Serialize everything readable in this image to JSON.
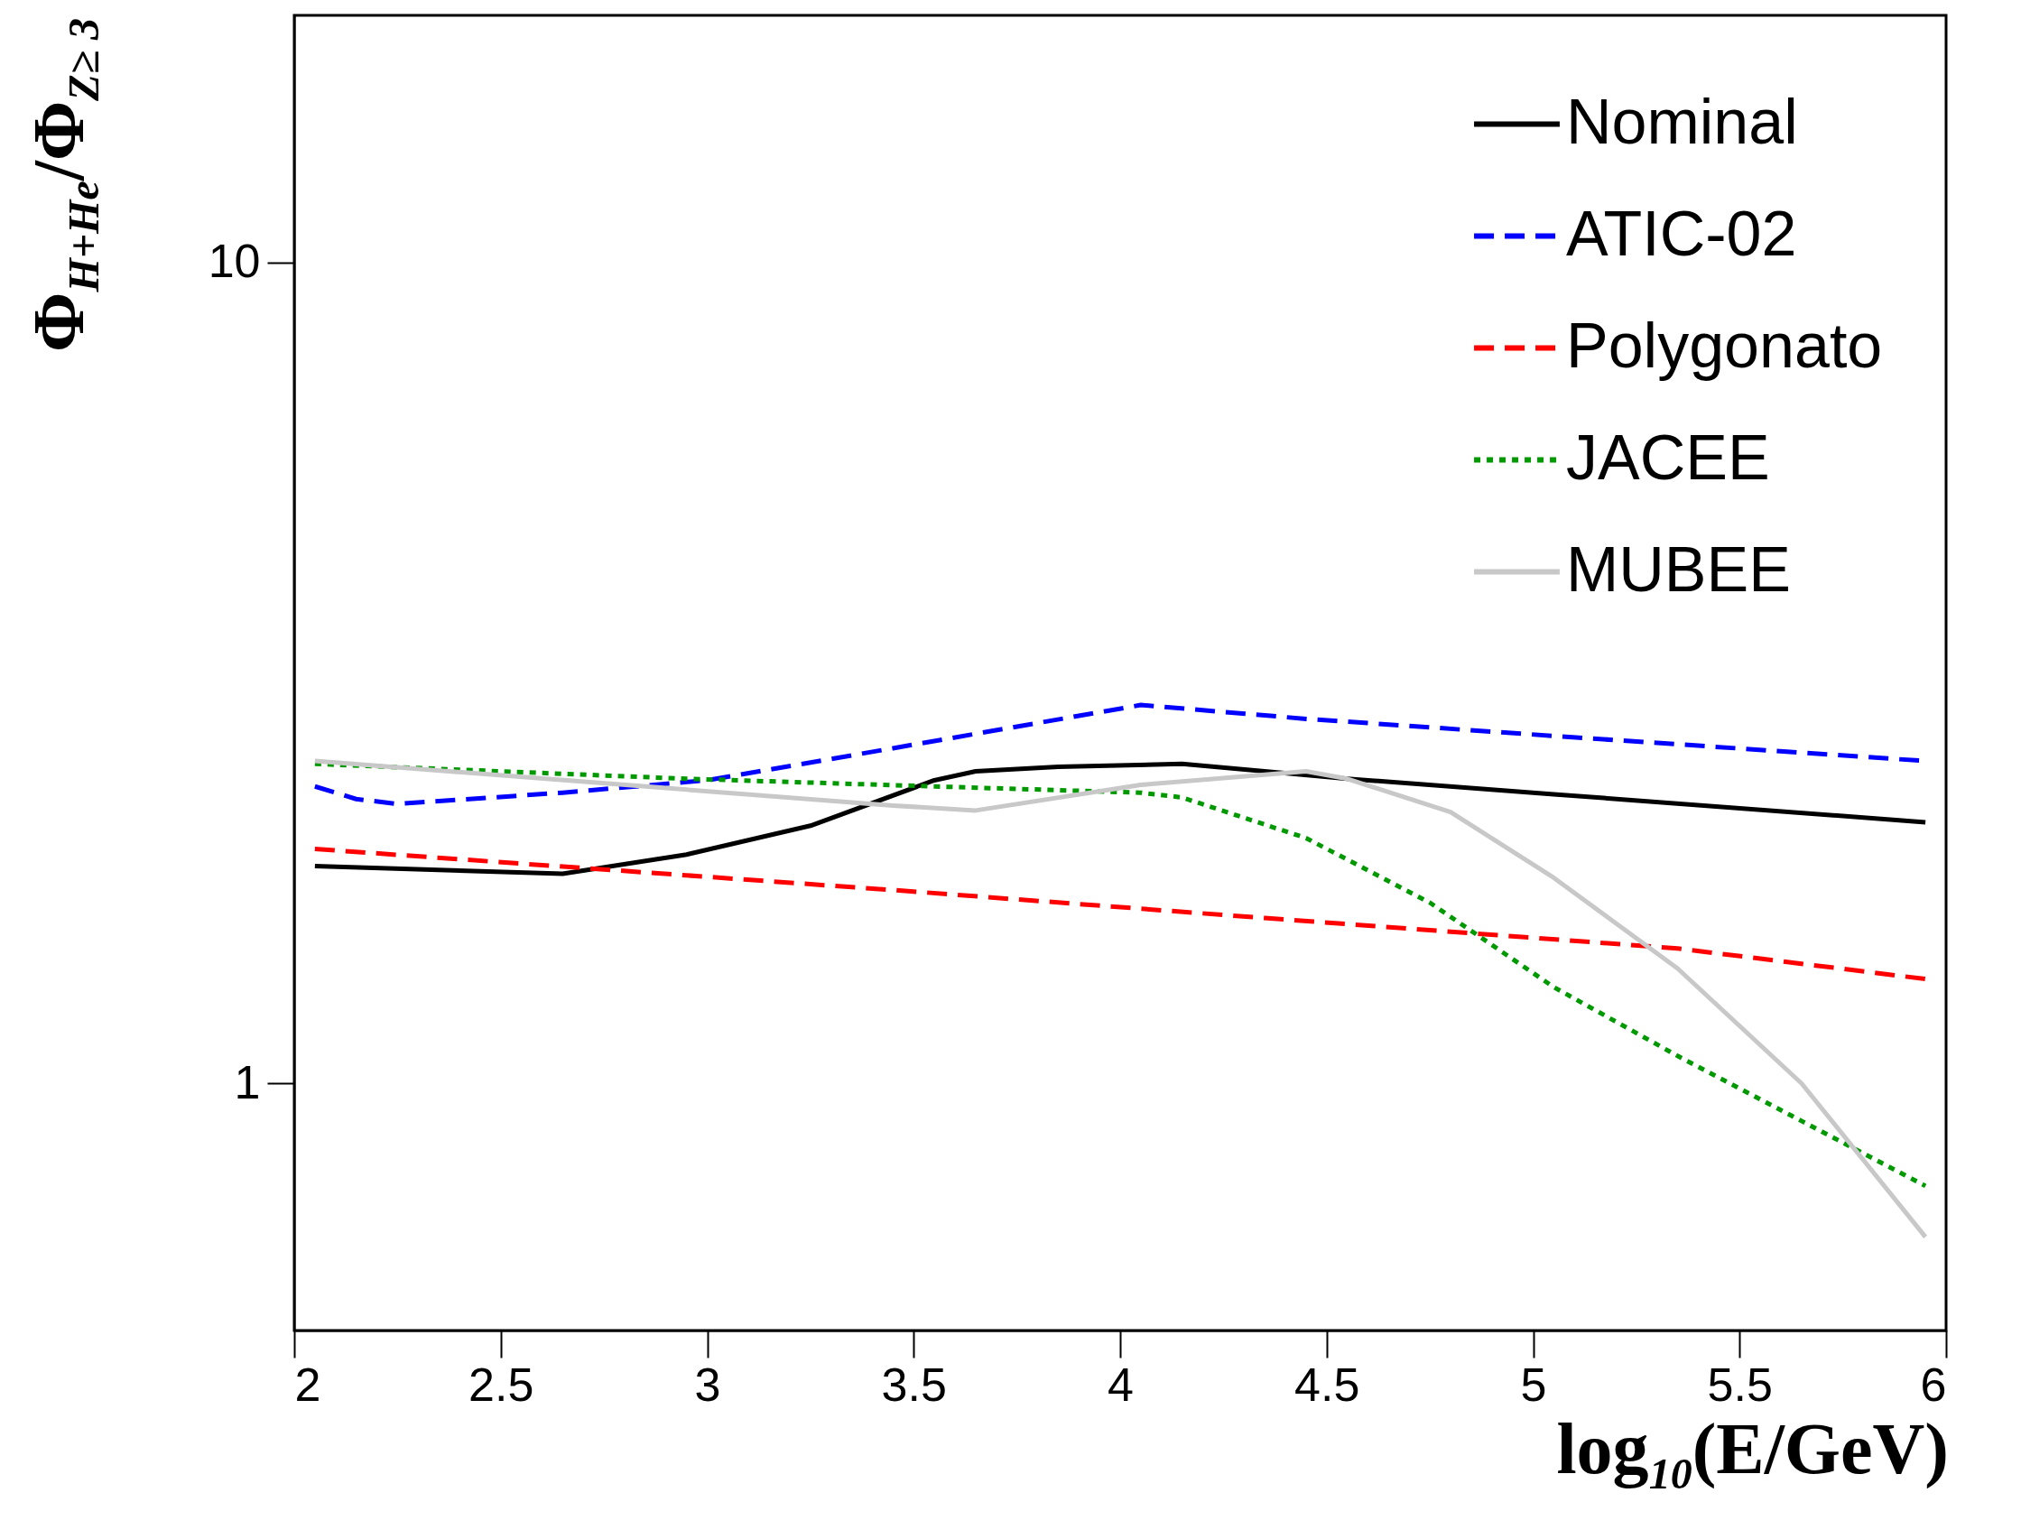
{
  "chart_data": {
    "type": "line",
    "xlabel": "log$_{10}$(E/GeV)",
    "ylabel": "Φ$_{H+He}$/Φ$_{Z≥ 3}$",
    "log": "y",
    "grid": false,
    "legend": "top right",
    "marker": "none",
    "xlim": [
      2,
      6
    ],
    "xticks": [
      2,
      2.5,
      3,
      3.5,
      4,
      4.5,
      5,
      5.5,
      6
    ],
    "ylim": [
      0.5,
      20
    ],
    "yticks": [
      1,
      10
    ],
    "series": [
      {
        "name": "Nominal",
        "color": "#000000",
        "line_style": "solid",
        "x": [
          2.05,
          2.65,
          2.95,
          3.25,
          3.55,
          3.65,
          3.85,
          4.15,
          4.55,
          5.05,
          5.95
        ],
        "values": [
          1.84,
          1.8,
          1.9,
          2.06,
          2.34,
          2.4,
          2.43,
          2.45,
          2.35,
          2.25,
          2.08
        ]
      },
      {
        "name": "ATIC-02",
        "color": "#0000ff",
        "line_style": "dashed",
        "x": [
          2.05,
          2.15,
          2.25,
          2.65,
          3.0,
          3.45,
          4.05,
          4.45,
          5.05,
          5.95
        ],
        "values": [
          2.3,
          2.22,
          2.19,
          2.26,
          2.34,
          2.56,
          2.89,
          2.78,
          2.65,
          2.47
        ]
      },
      {
        "name": "Polygonato",
        "color": "#ff0000",
        "line_style": "dashed",
        "x": [
          2.05,
          3.45,
          4.35,
          5.35,
          5.95
        ],
        "values": [
          1.93,
          1.72,
          1.59,
          1.46,
          1.34
        ]
      },
      {
        "name": "JACEE",
        "color": "#009900",
        "line_style": "dotted",
        "x": [
          2.05,
          2.95,
          3.55,
          4.05,
          4.15,
          4.45,
          4.75,
          5.05,
          5.35,
          5.65,
          5.95
        ],
        "values": [
          2.45,
          2.35,
          2.3,
          2.26,
          2.23,
          1.99,
          1.66,
          1.31,
          1.08,
          0.9,
          0.75
        ]
      },
      {
        "name": "MUBEE",
        "color": "#c8c8c8",
        "line_style": "solid",
        "x": [
          2.05,
          3.45,
          3.65,
          4.05,
          4.45,
          4.55,
          4.8,
          5.05,
          5.35,
          5.65,
          5.95
        ],
        "values": [
          2.47,
          2.18,
          2.15,
          2.31,
          2.4,
          2.35,
          2.14,
          1.78,
          1.38,
          1.0,
          0.65
        ]
      }
    ]
  }
}
